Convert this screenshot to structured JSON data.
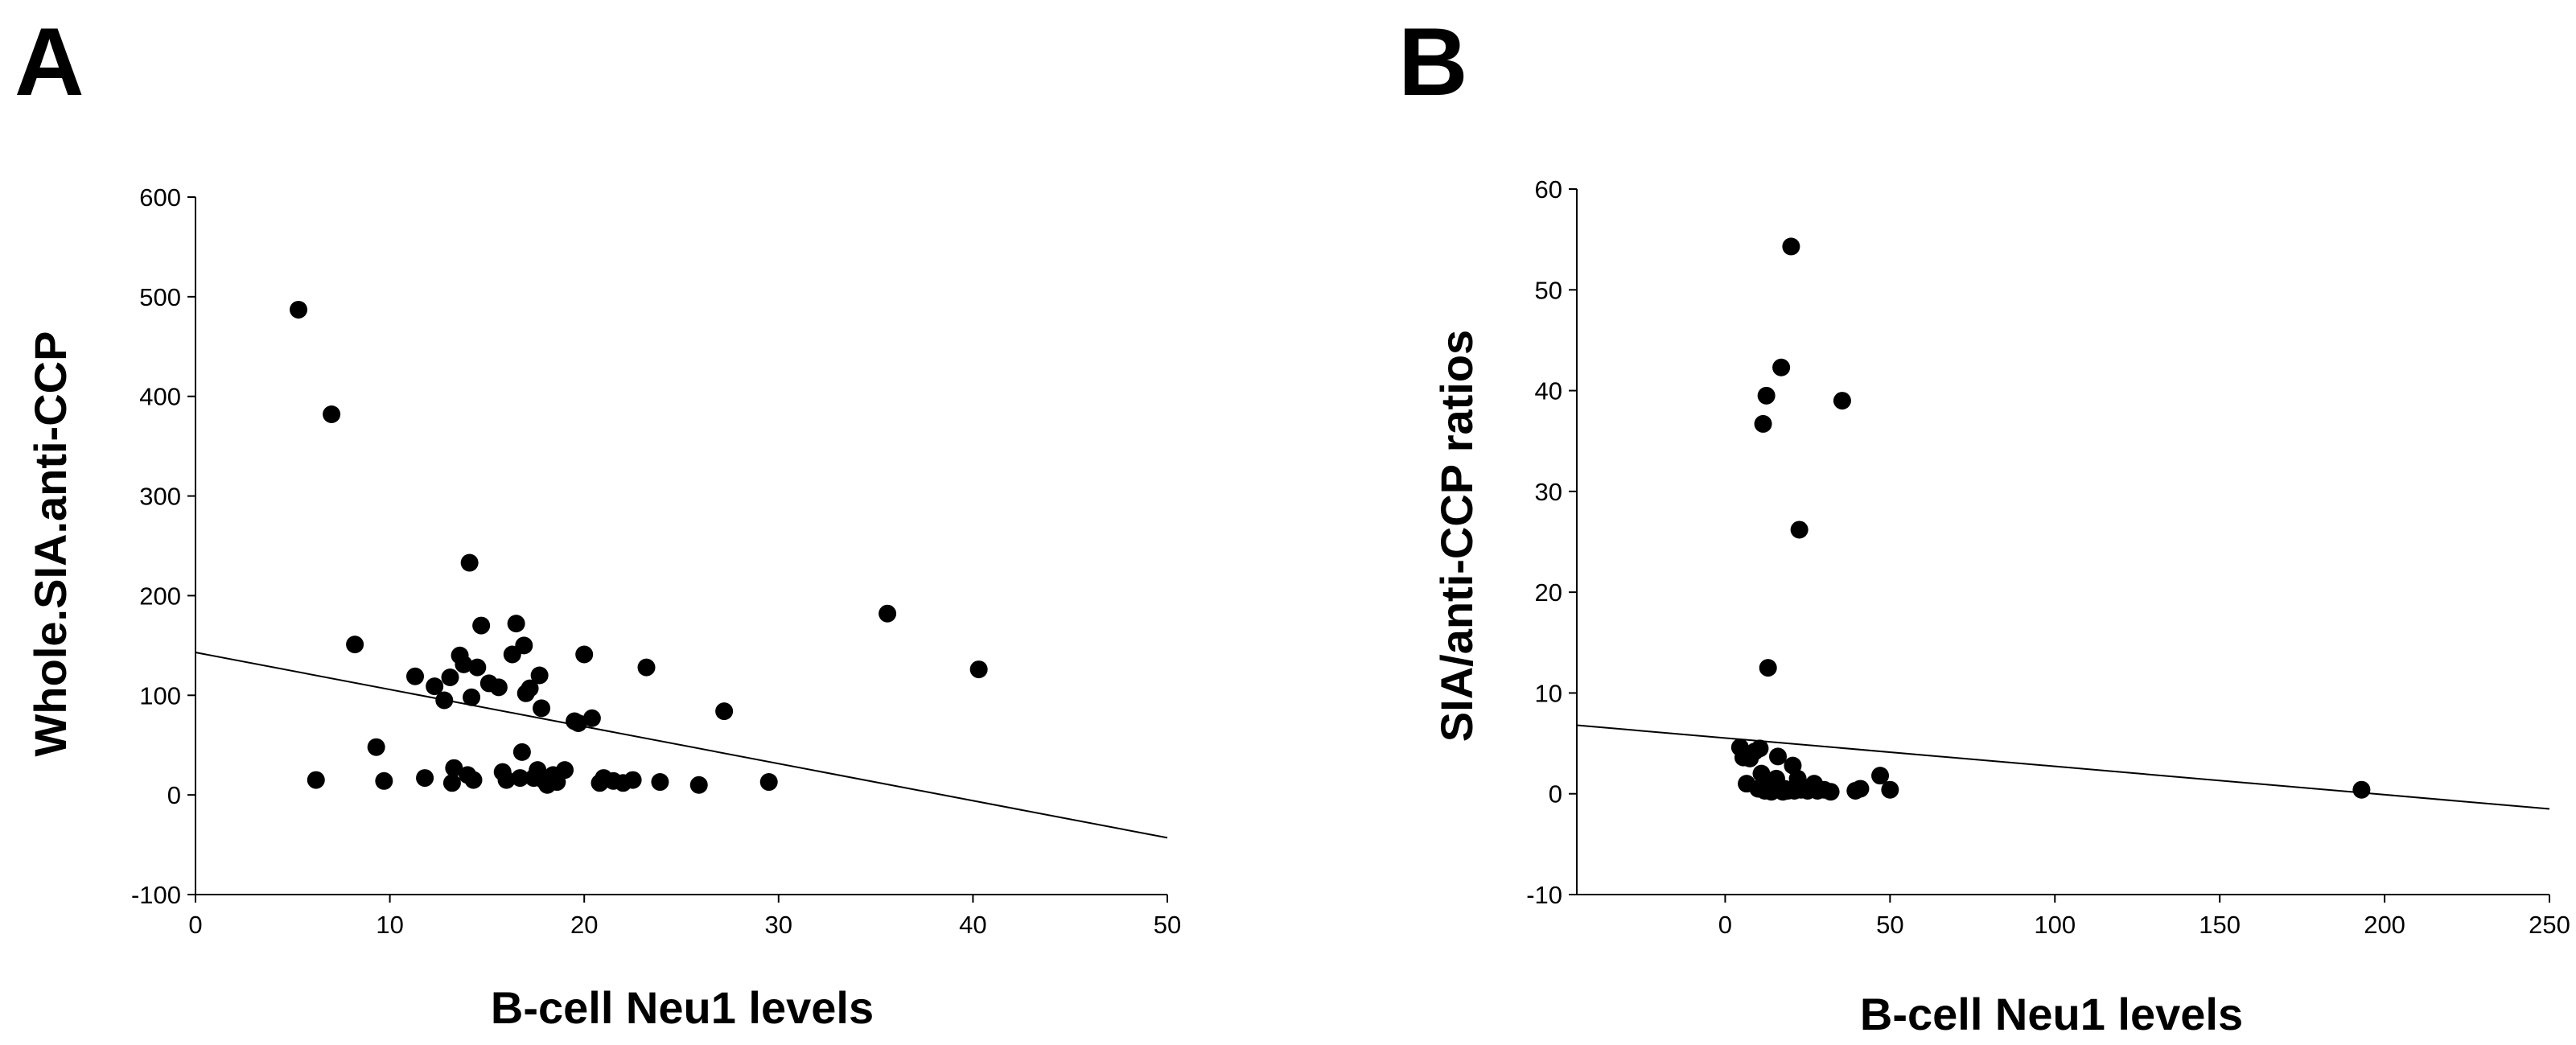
{
  "chart_data": [
    {
      "type": "scatter",
      "panel": "A",
      "title": "",
      "xlabel": "B-cell Neu1 levels",
      "ylabel": "Whole.SIA.anti-CCP",
      "xlim": [
        0,
        50
      ],
      "ylim": [
        -100,
        600
      ],
      "xticks": [
        0,
        10,
        20,
        30,
        40,
        50
      ],
      "yticks": [
        -100,
        0,
        100,
        200,
        300,
        400,
        500,
        600
      ],
      "grid": false,
      "trendline": {
        "x": [
          0,
          50
        ],
        "y": [
          143,
          -43
        ]
      },
      "points": [
        {
          "x": 5.3,
          "y": 487
        },
        {
          "x": 7.0,
          "y": 382
        },
        {
          "x": 8.2,
          "y": 151
        },
        {
          "x": 6.2,
          "y": 15
        },
        {
          "x": 9.3,
          "y": 48
        },
        {
          "x": 9.7,
          "y": 14
        },
        {
          "x": 11.3,
          "y": 119
        },
        {
          "x": 11.8,
          "y": 17
        },
        {
          "x": 12.3,
          "y": 109
        },
        {
          "x": 12.8,
          "y": 95
        },
        {
          "x": 13.1,
          "y": 118
        },
        {
          "x": 13.3,
          "y": 27
        },
        {
          "x": 13.2,
          "y": 12
        },
        {
          "x": 13.6,
          "y": 140
        },
        {
          "x": 13.8,
          "y": 131
        },
        {
          "x": 14.0,
          "y": 20
        },
        {
          "x": 14.1,
          "y": 233
        },
        {
          "x": 14.2,
          "y": 98
        },
        {
          "x": 14.3,
          "y": 15
        },
        {
          "x": 14.5,
          "y": 128
        },
        {
          "x": 14.7,
          "y": 170
        },
        {
          "x": 15.1,
          "y": 112
        },
        {
          "x": 15.6,
          "y": 108
        },
        {
          "x": 15.8,
          "y": 23
        },
        {
          "x": 16.0,
          "y": 15
        },
        {
          "x": 16.3,
          "y": 141
        },
        {
          "x": 16.5,
          "y": 172
        },
        {
          "x": 16.7,
          "y": 17
        },
        {
          "x": 16.8,
          "y": 43
        },
        {
          "x": 16.9,
          "y": 150
        },
        {
          "x": 17.0,
          "y": 102
        },
        {
          "x": 17.2,
          "y": 107
        },
        {
          "x": 17.4,
          "y": 17
        },
        {
          "x": 17.6,
          "y": 25
        },
        {
          "x": 17.7,
          "y": 120
        },
        {
          "x": 17.8,
          "y": 87
        },
        {
          "x": 17.9,
          "y": 15
        },
        {
          "x": 18.1,
          "y": 10
        },
        {
          "x": 18.4,
          "y": 20
        },
        {
          "x": 18.6,
          "y": 13
        },
        {
          "x": 19.0,
          "y": 25
        },
        {
          "x": 19.5,
          "y": 74
        },
        {
          "x": 19.7,
          "y": 72
        },
        {
          "x": 20.0,
          "y": 141
        },
        {
          "x": 20.4,
          "y": 77
        },
        {
          "x": 20.8,
          "y": 12
        },
        {
          "x": 21.0,
          "y": 17
        },
        {
          "x": 21.5,
          "y": 14
        },
        {
          "x": 22.0,
          "y": 12
        },
        {
          "x": 22.5,
          "y": 15
        },
        {
          "x": 23.2,
          "y": 128
        },
        {
          "x": 23.9,
          "y": 13
        },
        {
          "x": 25.9,
          "y": 10
        },
        {
          "x": 27.2,
          "y": 84
        },
        {
          "x": 29.5,
          "y": 13
        },
        {
          "x": 35.6,
          "y": 182
        },
        {
          "x": 40.3,
          "y": 126
        }
      ]
    },
    {
      "type": "scatter",
      "panel": "B",
      "title": "",
      "xlabel": "B-cell Neu1 levels",
      "ylabel": "SIA/anti-CCP ratios",
      "xlim": [
        -45,
        250
      ],
      "ylim": [
        -10,
        60
      ],
      "xticks": [
        0,
        50,
        100,
        150,
        200,
        250
      ],
      "yticks": [
        -10,
        0,
        10,
        20,
        30,
        40,
        50,
        60
      ],
      "grid": false,
      "trendline": {
        "x": [
          -45,
          250
        ],
        "y": [
          6.8,
          -1.5
        ]
      },
      "points": [
        {
          "x": 4.5,
          "y": 4.6
        },
        {
          "x": 5.5,
          "y": 3.6
        },
        {
          "x": 6.5,
          "y": 1.0
        },
        {
          "x": 7.5,
          "y": 3.5
        },
        {
          "x": 9.0,
          "y": 4.2
        },
        {
          "x": 10.0,
          "y": 0.5
        },
        {
          "x": 10.5,
          "y": 4.5
        },
        {
          "x": 11.0,
          "y": 2.0
        },
        {
          "x": 11.5,
          "y": 36.7
        },
        {
          "x": 12.0,
          "y": 0.3
        },
        {
          "x": 12.5,
          "y": 39.5
        },
        {
          "x": 13.0,
          "y": 12.5
        },
        {
          "x": 13.5,
          "y": 1.2
        },
        {
          "x": 14.0,
          "y": 0.2
        },
        {
          "x": 15.0,
          "y": 0.4
        },
        {
          "x": 15.5,
          "y": 1.5
        },
        {
          "x": 16.0,
          "y": 3.7
        },
        {
          "x": 16.5,
          "y": 0.4
        },
        {
          "x": 17.0,
          "y": 42.3
        },
        {
          "x": 17.5,
          "y": 0.2
        },
        {
          "x": 18.0,
          "y": 0.5
        },
        {
          "x": 19.0,
          "y": 0.3
        },
        {
          "x": 20.0,
          "y": 54.3
        },
        {
          "x": 20.5,
          "y": 2.8
        },
        {
          "x": 21.0,
          "y": 0.3
        },
        {
          "x": 22.0,
          "y": 1.5
        },
        {
          "x": 22.5,
          "y": 26.2
        },
        {
          "x": 23.0,
          "y": 0.4
        },
        {
          "x": 25.0,
          "y": 0.3
        },
        {
          "x": 27.0,
          "y": 1.0
        },
        {
          "x": 28.0,
          "y": 0.3
        },
        {
          "x": 30.0,
          "y": 0.4
        },
        {
          "x": 32.0,
          "y": 0.2
        },
        {
          "x": 35.5,
          "y": 39.0
        },
        {
          "x": 39.5,
          "y": 0.3
        },
        {
          "x": 41.0,
          "y": 0.5
        },
        {
          "x": 47.0,
          "y": 1.8
        },
        {
          "x": 50.0,
          "y": 0.4
        },
        {
          "x": 193.0,
          "y": 0.4
        }
      ]
    }
  ]
}
